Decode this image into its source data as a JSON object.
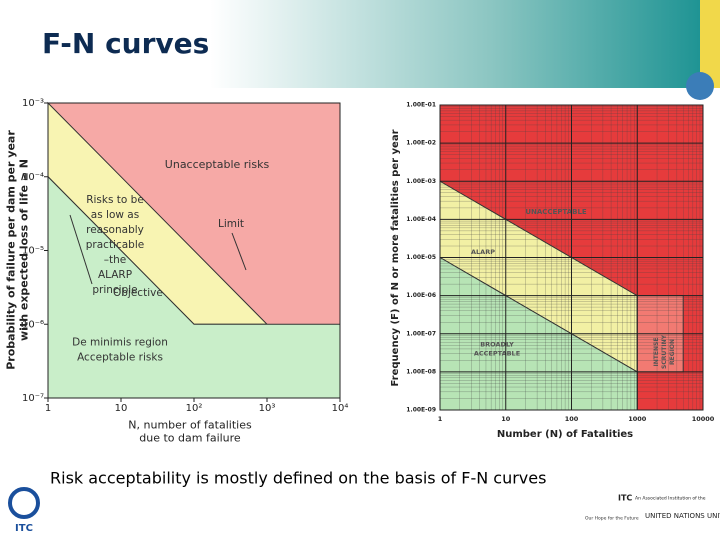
{
  "slide": {
    "title": "F-N curves",
    "caption": "Risk acceptability is mostly defined on the basis of F-N curves",
    "logo_left": "ITC",
    "logo_right": "ITC",
    "logo_right_tagline": "An Associated Institution of the",
    "un_name": "UNITED NATIONS UNIVERSITY",
    "un_motto": "Our Hope for the Future"
  },
  "chart_data": [
    {
      "type": "region",
      "xlabel": "N, number of fatalities\ndue to dam failure",
      "ylabel": "Probability of failure per dam per year\nwith expected loss of life ≥ N",
      "log_x": true,
      "log_y": true,
      "xlim": [
        1,
        10000
      ],
      "ylim": [
        1e-07,
        0.001
      ],
      "xticks": [
        1,
        10,
        {
          "value": 100,
          "label": "10²"
        },
        {
          "value": 1000,
          "label": "10³"
        },
        {
          "value": 10000,
          "label": "10⁴"
        }
      ],
      "yticks": [
        {
          "value": 1e-07,
          "label": "10⁻⁷"
        },
        {
          "value": 1e-06,
          "label": "10⁻⁶"
        },
        {
          "value": 1e-05,
          "label": "10⁻⁵"
        },
        {
          "value": 0.0001,
          "label": "10⁻⁴"
        },
        {
          "value": 0.001,
          "label": "10⁻³"
        }
      ],
      "regions": [
        {
          "name": "Unacceptable risks",
          "color": "#f6a9a6",
          "x": [
            1,
            10000,
            10000,
            1
          ],
          "y": [
            0.001,
            0.001,
            1e-07,
            1e-07
          ]
        },
        {
          "name": "Risks to be\nas low as\nreasonably\npracticable\n–the\nALARP\nprinciple",
          "color": "#f8f4b2",
          "x": [
            1,
            1000,
            100,
            1
          ],
          "y": [
            0.001,
            1e-06,
            1e-06,
            0.0001
          ]
        },
        {
          "name": "De minimis region\nAcceptable risks",
          "color": "#c9eec9",
          "x": [
            1,
            100,
            10000,
            10000,
            1
          ],
          "y": [
            0.0001,
            1e-06,
            1e-06,
            1e-07,
            1e-07
          ]
        }
      ],
      "annotations": [
        "Limit",
        "Objective"
      ]
    },
    {
      "type": "region",
      "xlabel": "Number (N) of Fatalities",
      "ylabel": "Frequency (F) of N or more fatalities per year",
      "log_x": true,
      "log_y": true,
      "grid": true,
      "xlim": [
        1,
        10000
      ],
      "ylim": [
        1e-09,
        0.1
      ],
      "xticks": [
        1,
        10,
        100,
        1000,
        10000
      ],
      "yticks": [
        {
          "value": 1e-09,
          "label": "1.00E-09"
        },
        {
          "value": 1e-08,
          "label": "1.00E-08"
        },
        {
          "value": 1e-07,
          "label": "1.00E-07"
        },
        {
          "value": 1e-06,
          "label": "1.00E-06"
        },
        {
          "value": 1e-05,
          "label": "1.00E-05"
        },
        {
          "value": 0.0001,
          "label": "1.00E-04"
        },
        {
          "value": 0.001,
          "label": "1.00E-03"
        },
        {
          "value": 0.01,
          "label": "1.00E-02"
        },
        {
          "value": 0.1,
          "label": "1.00E-01"
        }
      ],
      "regions": [
        {
          "name": "UNACCEPTABLE",
          "color": "#e63b3c",
          "x": [
            1,
            10000,
            10000,
            1
          ],
          "y": [
            0.1,
            0.1,
            1e-09,
            1e-09
          ]
        },
        {
          "name": "ALARP",
          "color": "#f2f0a4",
          "x": [
            1,
            1000,
            1000,
            1
          ],
          "y": [
            0.001,
            1e-06,
            1e-08,
            1e-05
          ]
        },
        {
          "name": "BROADLY\nACCEPTABLE",
          "color": "#b7e4b5",
          "x": [
            1,
            1000,
            1000,
            1
          ],
          "y": [
            1e-05,
            1e-08,
            1e-09,
            1e-09
          ]
        },
        {
          "name": "INTENSE\nSCRUTINY\nREGION",
          "color": "#f27a72",
          "x": [
            1000,
            5000,
            5000,
            1000
          ],
          "y": [
            1e-06,
            1e-06,
            1e-08,
            1e-08
          ]
        }
      ]
    }
  ]
}
